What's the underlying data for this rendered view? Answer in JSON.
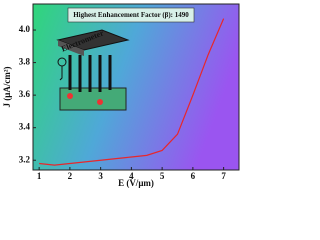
{
  "chart_data": {
    "type": "line",
    "annotation": "Highest Enhancement Factor (β): 1490",
    "inset_label": "Electrometer",
    "x_label": "E (V/μm)",
    "y_label": "J (μA/cm²)",
    "x": [
      1,
      1.5,
      2,
      2.5,
      3,
      3.5,
      4,
      4.5,
      5,
      5.5,
      6,
      6.5,
      7
    ],
    "series": [
      {
        "name": "J",
        "color": "#e8262b",
        "values": [
          3.18,
          3.17,
          3.18,
          3.19,
          3.2,
          3.21,
          3.22,
          3.23,
          3.26,
          3.36,
          3.6,
          3.85,
          4.07
        ]
      }
    ],
    "xlim": [
      0.8,
      7.5
    ],
    "xticks": [
      1,
      2,
      3,
      4,
      5,
      6,
      7
    ],
    "ylim": [
      3.14,
      4.16
    ],
    "yticks": [
      {
        "value": 3.2,
        "label": "3.2"
      },
      {
        "value": 3.4,
        "label": "3.4"
      },
      {
        "value": 3.6,
        "label": "3.6"
      },
      {
        "value": 3.8,
        "label": "3.8"
      },
      {
        "value": 4.0,
        "label": "4.0"
      }
    ]
  }
}
